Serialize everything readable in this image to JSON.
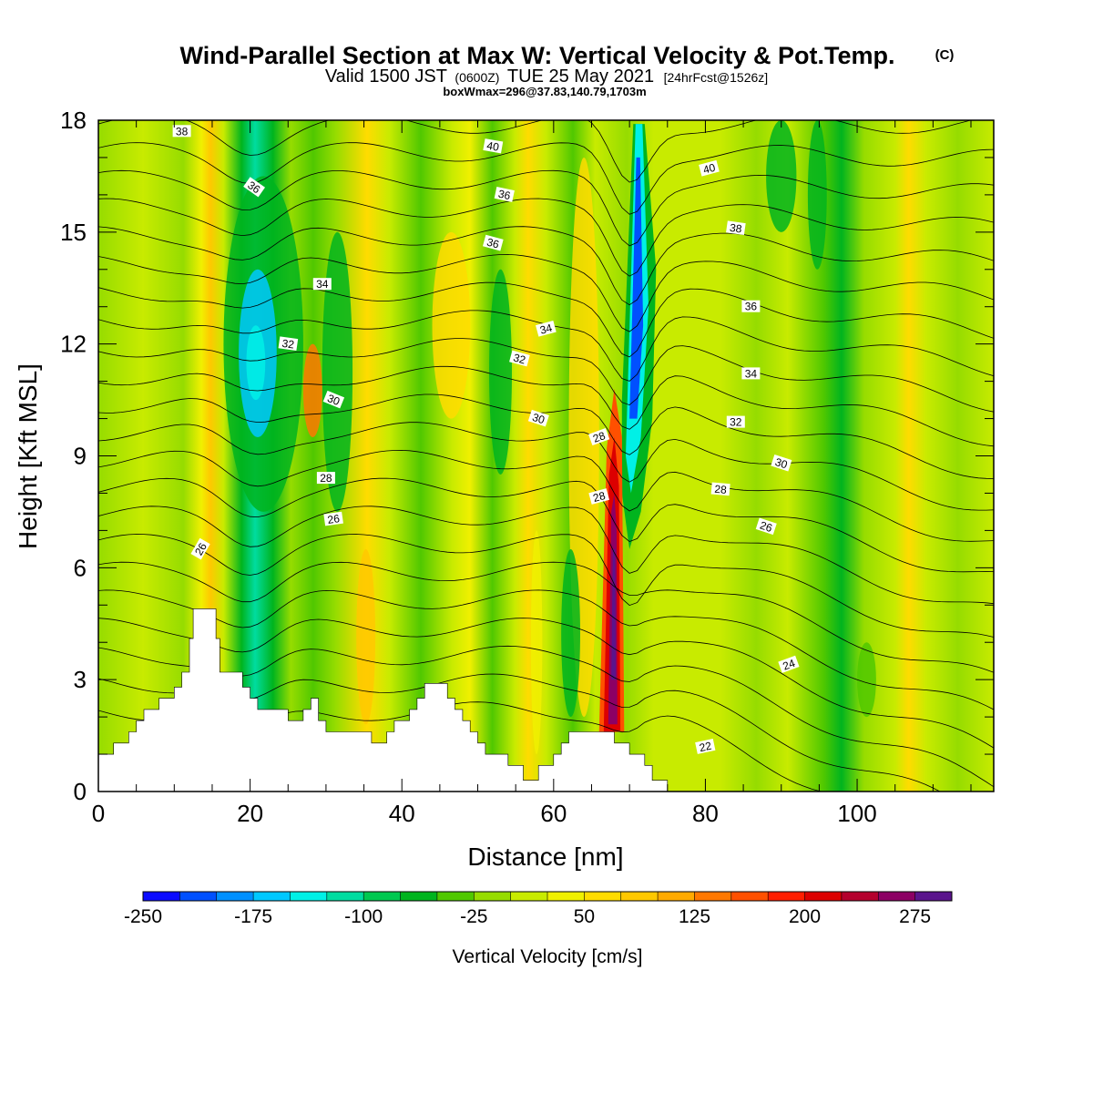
{
  "title": {
    "main": "Wind-Parallel Section at Max W: Vertical Velocity & Pot.Temp.",
    "copyright": "(C)",
    "valid_prefix": "Valid 1500 JST",
    "valid_utc": "(0600Z)",
    "valid_date": "TUE 25 May 2021",
    "forecast": "[24hrFcst@1526z]",
    "box_info": "boxWmax=296@37.83,140.79,1703m"
  },
  "chart_data": {
    "type": "heatmap",
    "xlabel": "Distance [nm]",
    "ylabel": "Height [Kft MSL]",
    "xlim": [
      0,
      118
    ],
    "ylim": [
      0,
      18
    ],
    "x_ticks": [
      0,
      20,
      40,
      60,
      80,
      100
    ],
    "y_ticks": [
      0,
      3,
      6,
      9,
      12,
      15,
      18
    ],
    "colorbar": {
      "title": "Vertical Velocity [cm/s]",
      "tick_labels": [
        "-250",
        "-175",
        "-100",
        "-25",
        "50",
        "125",
        "200",
        "275"
      ],
      "bounds": [
        -250,
        300
      ],
      "step": 25,
      "colors": [
        "#0a0aff",
        "#0050ff",
        "#0090ff",
        "#00c8ff",
        "#00f0e6",
        "#00dca0",
        "#00c850",
        "#00b41e",
        "#50c800",
        "#96dc00",
        "#c8eb00",
        "#f0f000",
        "#ffdc00",
        "#ffc800",
        "#ffaa00",
        "#ff7800",
        "#ff5000",
        "#ff1e00",
        "#dc0000",
        "#b4002d",
        "#8c0064",
        "#5a148c"
      ]
    },
    "ground_profile": [
      [
        0,
        1.0
      ],
      [
        2,
        1.0
      ],
      [
        2,
        1.3
      ],
      [
        4,
        1.3
      ],
      [
        4,
        1.6
      ],
      [
        5,
        1.6
      ],
      [
        5,
        1.9
      ],
      [
        6,
        1.9
      ],
      [
        6,
        2.2
      ],
      [
        8,
        2.2
      ],
      [
        8,
        2.5
      ],
      [
        10,
        2.5
      ],
      [
        10,
        2.8
      ],
      [
        11,
        2.8
      ],
      [
        11,
        3.2
      ],
      [
        12,
        3.2
      ],
      [
        12,
        4.1
      ],
      [
        12.5,
        4.1
      ],
      [
        12.5,
        4.9
      ],
      [
        15.5,
        4.9
      ],
      [
        15.5,
        4.1
      ],
      [
        16,
        4.1
      ],
      [
        16,
        3.2
      ],
      [
        19,
        3.2
      ],
      [
        19,
        2.8
      ],
      [
        20,
        2.8
      ],
      [
        20,
        2.5
      ],
      [
        21,
        2.5
      ],
      [
        21,
        2.2
      ],
      [
        25,
        2.2
      ],
      [
        25,
        1.9
      ],
      [
        27,
        1.9
      ],
      [
        27,
        2.2
      ],
      [
        28,
        2.2
      ],
      [
        28,
        2.5
      ],
      [
        29,
        2.5
      ],
      [
        29,
        1.9
      ],
      [
        30,
        1.9
      ],
      [
        30,
        1.6
      ],
      [
        36,
        1.6
      ],
      [
        36,
        1.3
      ],
      [
        38,
        1.3
      ],
      [
        38,
        1.6
      ],
      [
        39,
        1.6
      ],
      [
        39,
        1.9
      ],
      [
        41,
        1.9
      ],
      [
        41,
        2.2
      ],
      [
        42,
        2.2
      ],
      [
        42,
        2.5
      ],
      [
        43,
        2.5
      ],
      [
        43,
        2.9
      ],
      [
        46,
        2.9
      ],
      [
        46,
        2.5
      ],
      [
        47,
        2.5
      ],
      [
        47,
        2.2
      ],
      [
        48,
        2.2
      ],
      [
        48,
        1.9
      ],
      [
        49,
        1.9
      ],
      [
        49,
        1.6
      ],
      [
        50,
        1.6
      ],
      [
        50,
        1.3
      ],
      [
        51,
        1.3
      ],
      [
        51,
        1.0
      ],
      [
        54,
        1.0
      ],
      [
        54,
        0.7
      ],
      [
        56,
        0.7
      ],
      [
        56,
        0.3
      ],
      [
        58,
        0.3
      ],
      [
        58,
        0.7
      ],
      [
        60,
        0.7
      ],
      [
        60,
        1.0
      ],
      [
        61,
        1.0
      ],
      [
        61,
        1.3
      ],
      [
        62,
        1.3
      ],
      [
        62,
        1.6
      ],
      [
        68,
        1.6
      ],
      [
        68,
        1.3
      ],
      [
        70,
        1.3
      ],
      [
        70,
        1.0
      ],
      [
        72,
        1.0
      ],
      [
        72,
        0.7
      ],
      [
        73,
        0.7
      ],
      [
        73,
        0.3
      ],
      [
        75,
        0.3
      ],
      [
        75,
        0.0
      ]
    ],
    "contour_labels": [
      {
        "text": "38",
        "x": 11,
        "y": 17.7,
        "angle": 0
      },
      {
        "text": "40",
        "x": 52,
        "y": 17.3,
        "angle": 10
      },
      {
        "text": "40",
        "x": 80.5,
        "y": 16.7,
        "angle": -15
      },
      {
        "text": "36",
        "x": 20.5,
        "y": 16.2,
        "angle": 35
      },
      {
        "text": "36",
        "x": 53.5,
        "y": 16.0,
        "angle": 12
      },
      {
        "text": "38",
        "x": 84,
        "y": 15.1,
        "angle": 8
      },
      {
        "text": "36",
        "x": 52,
        "y": 14.7,
        "angle": 15
      },
      {
        "text": "34",
        "x": 29.5,
        "y": 13.6,
        "angle": 0
      },
      {
        "text": "36",
        "x": 86,
        "y": 13.0,
        "angle": 0
      },
      {
        "text": "34",
        "x": 59,
        "y": 12.4,
        "angle": -15
      },
      {
        "text": "32",
        "x": 25,
        "y": 12.0,
        "angle": 8
      },
      {
        "text": "32",
        "x": 55.5,
        "y": 11.6,
        "angle": 15
      },
      {
        "text": "34",
        "x": 86,
        "y": 11.2,
        "angle": 0
      },
      {
        "text": "30",
        "x": 31,
        "y": 10.5,
        "angle": 22
      },
      {
        "text": "30",
        "x": 58,
        "y": 10.0,
        "angle": 18
      },
      {
        "text": "32",
        "x": 84,
        "y": 9.9,
        "angle": 0
      },
      {
        "text": "28",
        "x": 66,
        "y": 9.5,
        "angle": -20
      },
      {
        "text": "30",
        "x": 90,
        "y": 8.8,
        "angle": 18
      },
      {
        "text": "28",
        "x": 30,
        "y": 8.4,
        "angle": 0
      },
      {
        "text": "28",
        "x": 82,
        "y": 8.1,
        "angle": 5
      },
      {
        "text": "28",
        "x": 66,
        "y": 7.9,
        "angle": -15
      },
      {
        "text": "26",
        "x": 31,
        "y": 7.3,
        "angle": -8
      },
      {
        "text": "26",
        "x": 88,
        "y": 7.1,
        "angle": 18
      },
      {
        "text": "26",
        "x": 13.5,
        "y": 6.5,
        "angle": -60
      },
      {
        "text": "24",
        "x": 91,
        "y": 3.4,
        "angle": -20
      },
      {
        "text": "22",
        "x": 80,
        "y": 1.2,
        "angle": -12
      }
    ]
  }
}
